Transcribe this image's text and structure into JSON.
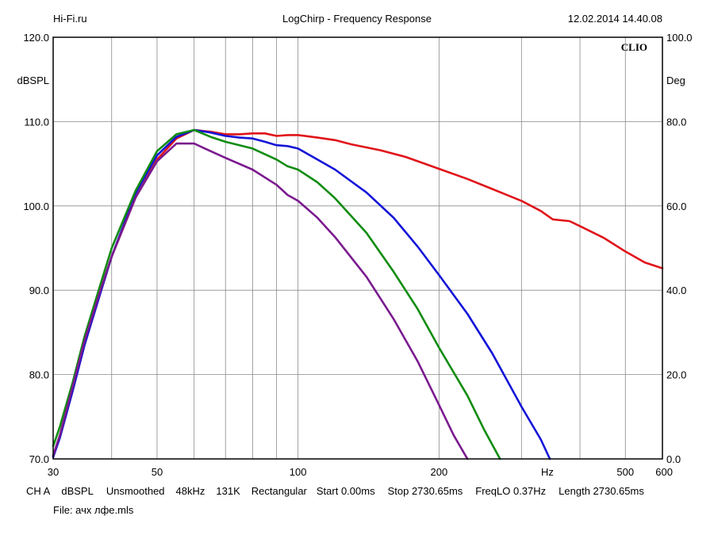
{
  "header": {
    "left": "Hi-Fi.ru",
    "center": "LogChirp - Frequency Response",
    "right": "12.02.2014 14.40.08"
  },
  "brand": "CLIO",
  "chart_data": {
    "type": "line",
    "title": "LogChirp - Frequency Response",
    "xscale": "log",
    "xlim": [
      30,
      600
    ],
    "ylim": [
      70,
      120
    ],
    "y2lim": [
      0,
      100
    ],
    "ylabel": "dBSPL",
    "y2label": "Deg",
    "xunit": "Hz",
    "grid": true,
    "x_ticks_major": [
      30,
      50,
      100,
      200,
      500,
      600
    ],
    "x_tick_labels": [
      "30",
      "50",
      "100",
      "200",
      "500",
      "600"
    ],
    "x_ticks_minor": [
      40,
      60,
      70,
      80,
      90,
      300,
      400
    ],
    "y_ticks": [
      70,
      80,
      90,
      100,
      110,
      120
    ],
    "y_tick_labels": [
      "70.0",
      "80.0",
      "90.0",
      "100.0",
      "110.0",
      "120.0"
    ],
    "y2_ticks": [
      0,
      20,
      40,
      60,
      80,
      100
    ],
    "y2_tick_labels": [
      "0.0",
      "20.0",
      "40.0",
      "60.0",
      "80.0",
      "100.0"
    ],
    "series": [
      {
        "color": "#e0141a",
        "x": [
          30,
          31,
          33,
          35,
          38,
          40,
          45,
          50,
          55,
          60,
          65,
          70,
          75,
          80,
          85,
          90,
          95,
          100,
          110,
          120,
          130,
          150,
          170,
          200,
          230,
          260,
          300,
          330,
          350,
          380,
          400,
          450,
          500,
          550,
          600
        ],
        "y": [
          70.3,
          72.5,
          78,
          83.5,
          90,
          94,
          101,
          105.5,
          108,
          109,
          108.8,
          108.5,
          108.5,
          108.6,
          108.6,
          108.3,
          108.4,
          108.4,
          108.1,
          107.8,
          107.3,
          106.6,
          105.8,
          104.4,
          103.2,
          102,
          100.6,
          99.4,
          98.4,
          98.2,
          97.6,
          96.2,
          94.6,
          93.3,
          92.6
        ]
      },
      {
        "color": "#1414d8",
        "x": [
          30,
          31,
          33,
          35,
          38,
          40,
          45,
          50,
          55,
          60,
          65,
          70,
          75,
          80,
          85,
          90,
          95,
          100,
          110,
          120,
          140,
          160,
          180,
          200,
          230,
          260,
          300,
          330,
          345
        ],
        "y": [
          70.2,
          72.5,
          78,
          83.5,
          90,
          94,
          101.5,
          106,
          108.2,
          109,
          108.7,
          108.3,
          108.1,
          108,
          107.6,
          107.2,
          107.1,
          106.8,
          105.5,
          104.3,
          101.6,
          98.6,
          95.2,
          91.8,
          87.2,
          82.5,
          76.2,
          72.3,
          70
        ]
      },
      {
        "color": "#108c10",
        "x": [
          30,
          31,
          33,
          35,
          38,
          40,
          45,
          50,
          55,
          60,
          65,
          70,
          80,
          90,
          95,
          100,
          110,
          120,
          140,
          160,
          180,
          200,
          230,
          250,
          270
        ],
        "y": [
          71.5,
          73.8,
          79,
          84.5,
          91,
          95,
          101.8,
          106.5,
          108.5,
          109,
          108.2,
          107.6,
          106.8,
          105.5,
          104.7,
          104.3,
          102.8,
          100.9,
          96.8,
          92.2,
          87.8,
          83.2,
          77.5,
          73.4,
          70
        ]
      },
      {
        "color": "#7a1a8e",
        "x": [
          30,
          31,
          33,
          35,
          38,
          40,
          45,
          50,
          55,
          60,
          65,
          70,
          80,
          90,
          95,
          100,
          110,
          120,
          140,
          160,
          180,
          200,
          215,
          230
        ],
        "y": [
          70.4,
          72.8,
          78.5,
          84,
          90.3,
          94,
          101,
          105.3,
          107.4,
          107.4,
          106.5,
          105.7,
          104.3,
          102.5,
          101.3,
          100.6,
          98.6,
          96.3,
          91.6,
          86.6,
          81.6,
          76.4,
          72.8,
          70
        ]
      }
    ]
  },
  "footer": {
    "params": [
      "CH A",
      "dBSPL",
      "Unsmoothed",
      "48kHz",
      "131K",
      "Rectangular",
      "Start 0.00ms",
      "Stop 2730.65ms",
      "FreqLO 0.37Hz",
      "Length 2730.65ms"
    ],
    "file": "File: ачх лфе.mls"
  }
}
